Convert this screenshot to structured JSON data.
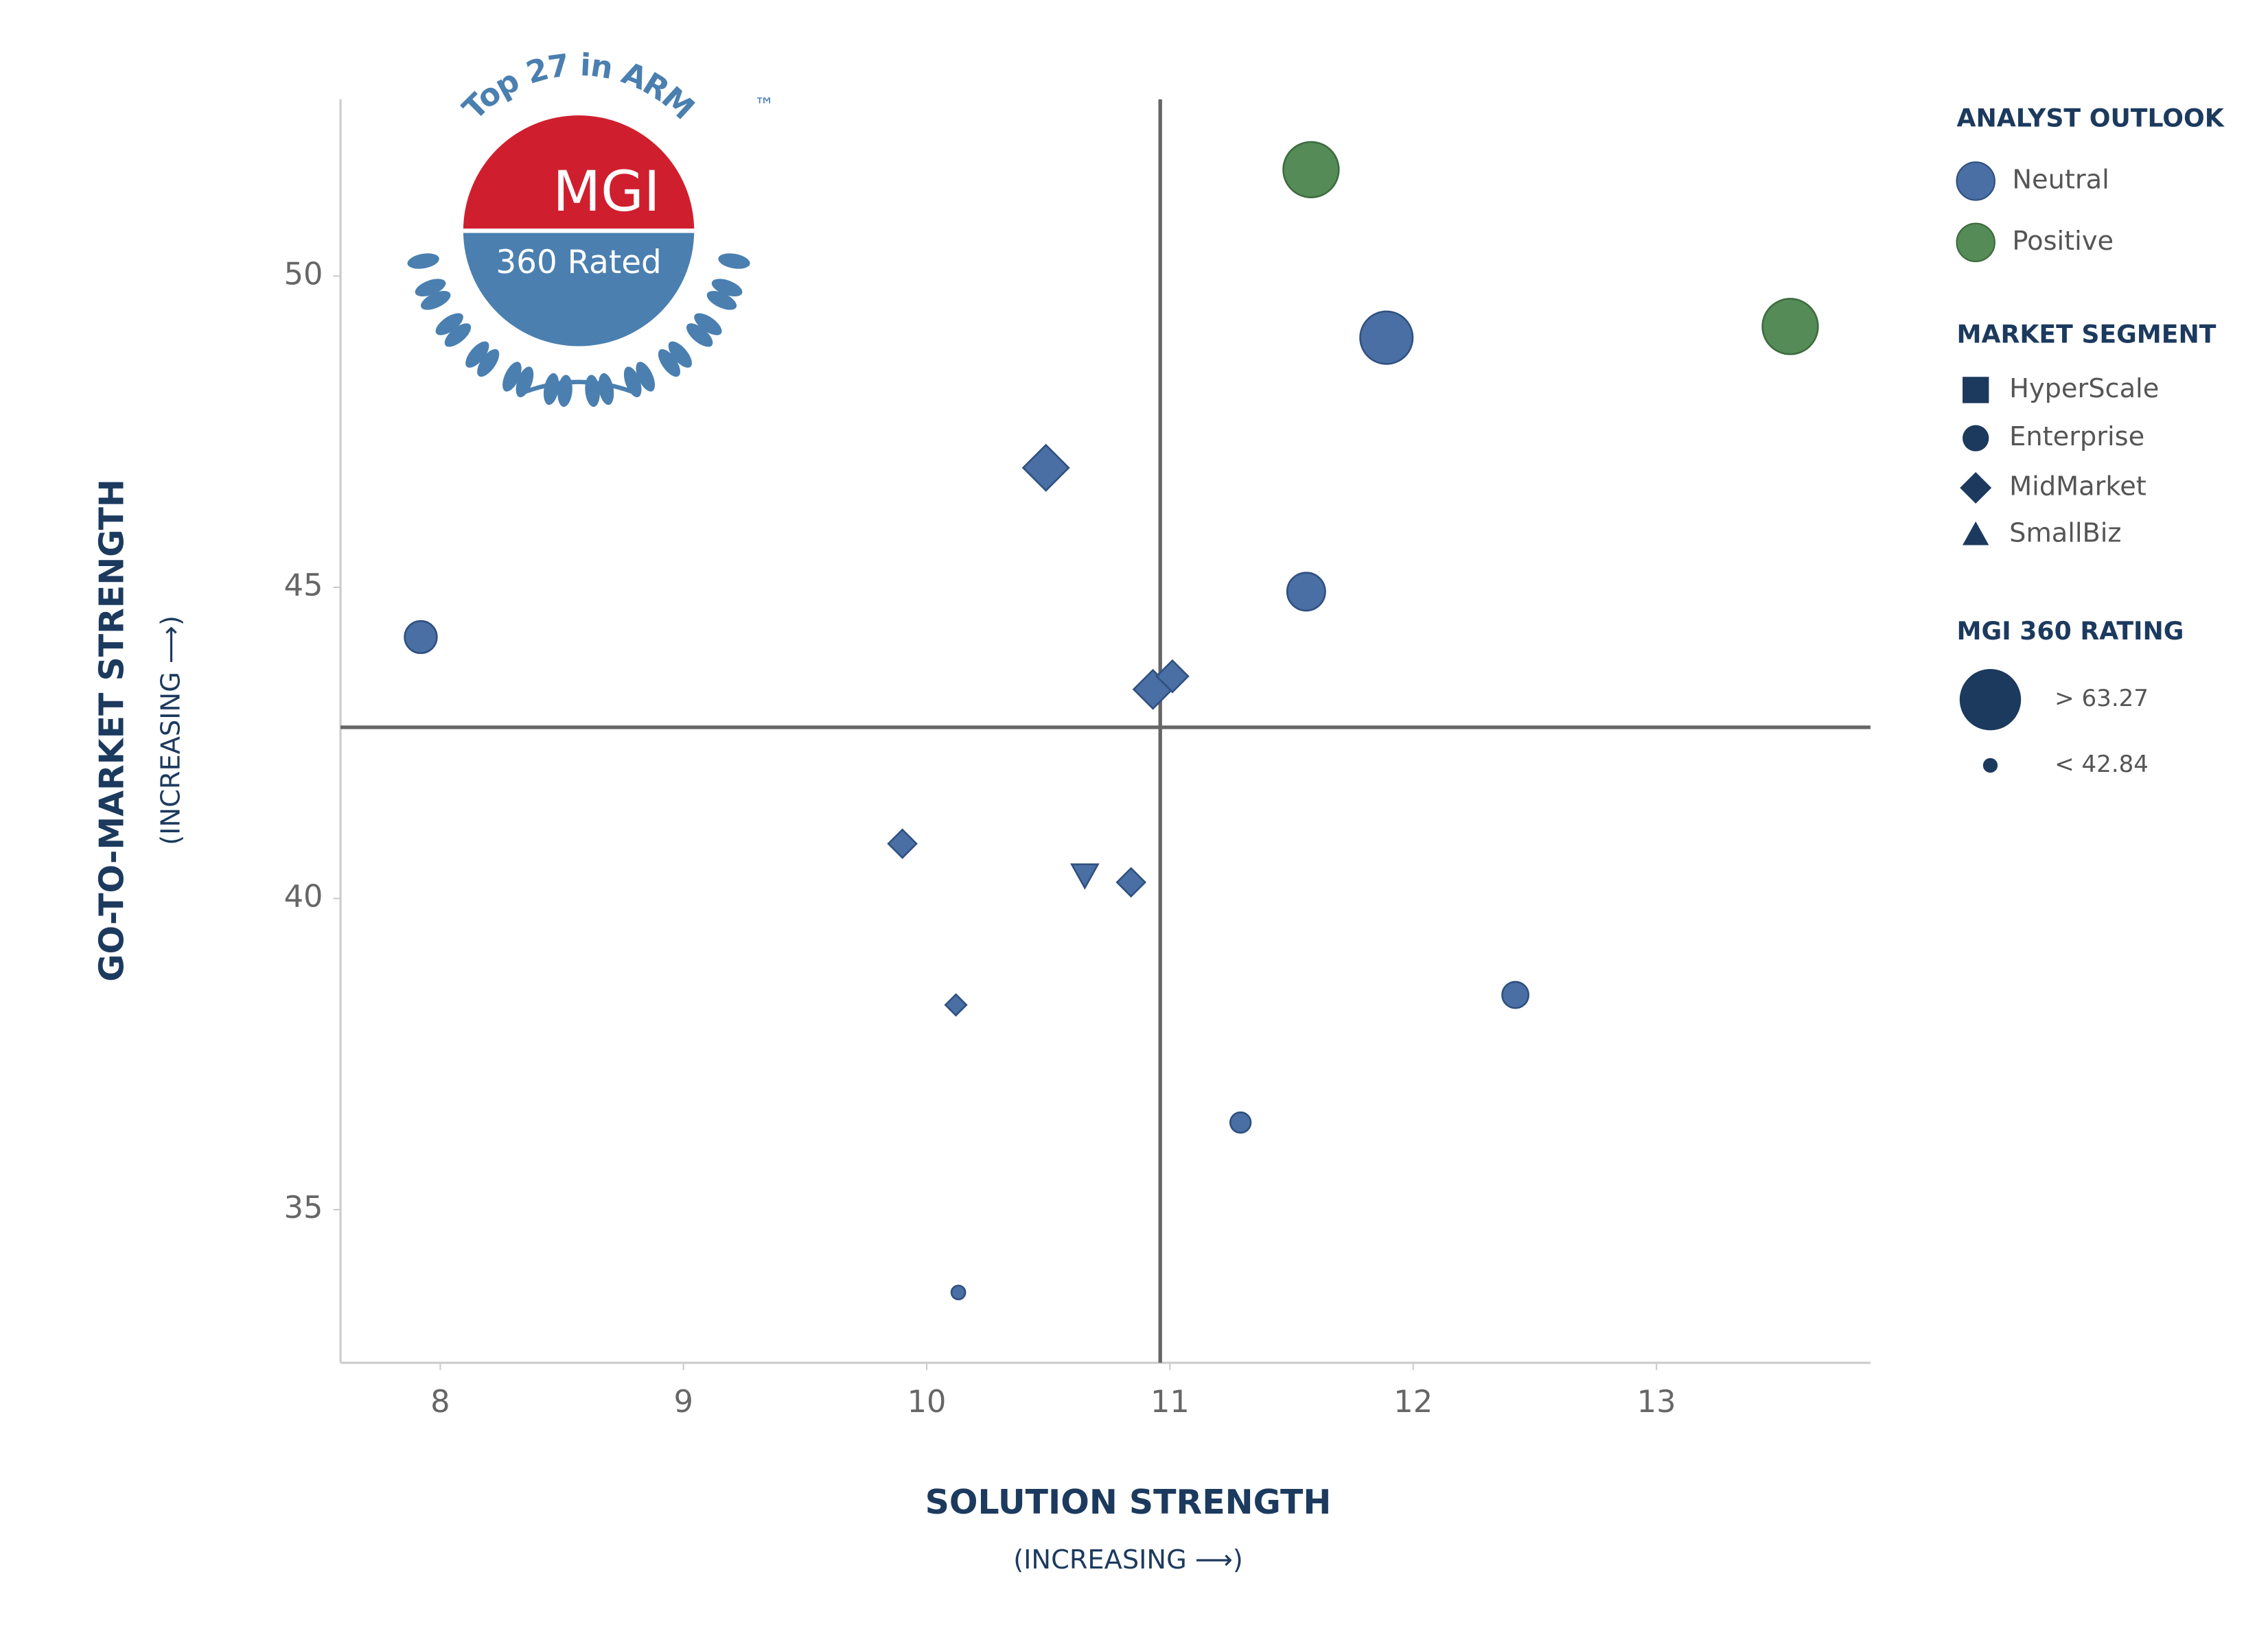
{
  "chart_data": {
    "type": "scatter",
    "badge": {
      "arc_text": "Top 27 in ARM",
      "top": "MGI",
      "bottom": "360 Rated",
      "mark": "™"
    },
    "x_label": "SOLUTION STRENGTH",
    "x_sublabel": "(INCREASING ⟶)",
    "y_label": "GO-TO-MARKET STRENGTH",
    "y_sublabel": "(INCREASING ⟶)",
    "xlim": [
      7.59,
      13.88
    ],
    "ylim": [
      32.54,
      52.84
    ],
    "xticks": [
      8,
      9,
      10,
      11,
      12,
      13
    ],
    "yticks": [
      35,
      40,
      45,
      50
    ],
    "quadrant_x": 10.96,
    "quadrant_y": 42.75,
    "series": [
      {
        "name": "Neutral",
        "color": "#4a6fa5",
        "stroke": "#2f4f7f",
        "x": [
          11.89,
          10.49,
          11.56,
          7.92,
          10.93,
          11.01,
          9.9,
          10.65,
          10.84,
          10.12,
          12.42,
          11.29,
          10.13
        ],
        "values": [
          49.01,
          46.92,
          44.93,
          44.2,
          43.36,
          43.57,
          40.88,
          40.38,
          40.26,
          38.29,
          38.45,
          36.4,
          33.67
        ],
        "sizes": [
          59.4,
          53.06,
          53.06,
          50.5,
          50.5,
          47.95,
          46.7,
          47.95,
          46.7,
          44.1,
          47.95,
          45.4,
          42.5
        ],
        "segments": [
          "Enterprise",
          "MidMarket",
          "Enterprise",
          "Enterprise",
          "MidMarket",
          "MidMarket",
          "MidMarket",
          "SmallBiz",
          "MidMarket",
          "MidMarket",
          "Enterprise",
          "Enterprise",
          "Enterprise"
        ]
      },
      {
        "name": "Positive",
        "color": "#558b56",
        "stroke": "#3d6b3e",
        "x": [
          11.58,
          13.55
        ],
        "values": [
          51.71,
          49.19
        ],
        "sizes": [
          60.7,
          60.7
        ],
        "segments": [
          "Enterprise",
          "Enterprise"
        ]
      }
    ],
    "legend": {
      "outlook_title": "ANALYST OUTLOOK",
      "segment_title": "MARKET SEGMENT",
      "segments": [
        "HyperScale",
        "Enterprise",
        "MidMarket",
        "SmallBiz"
      ],
      "rating_title": "MGI 360 RATING",
      "ratings": [
        {
          "value": 63.27,
          "label": "> 63.27"
        },
        {
          "value": 42.84,
          "label": "< 42.84"
        }
      ]
    }
  }
}
